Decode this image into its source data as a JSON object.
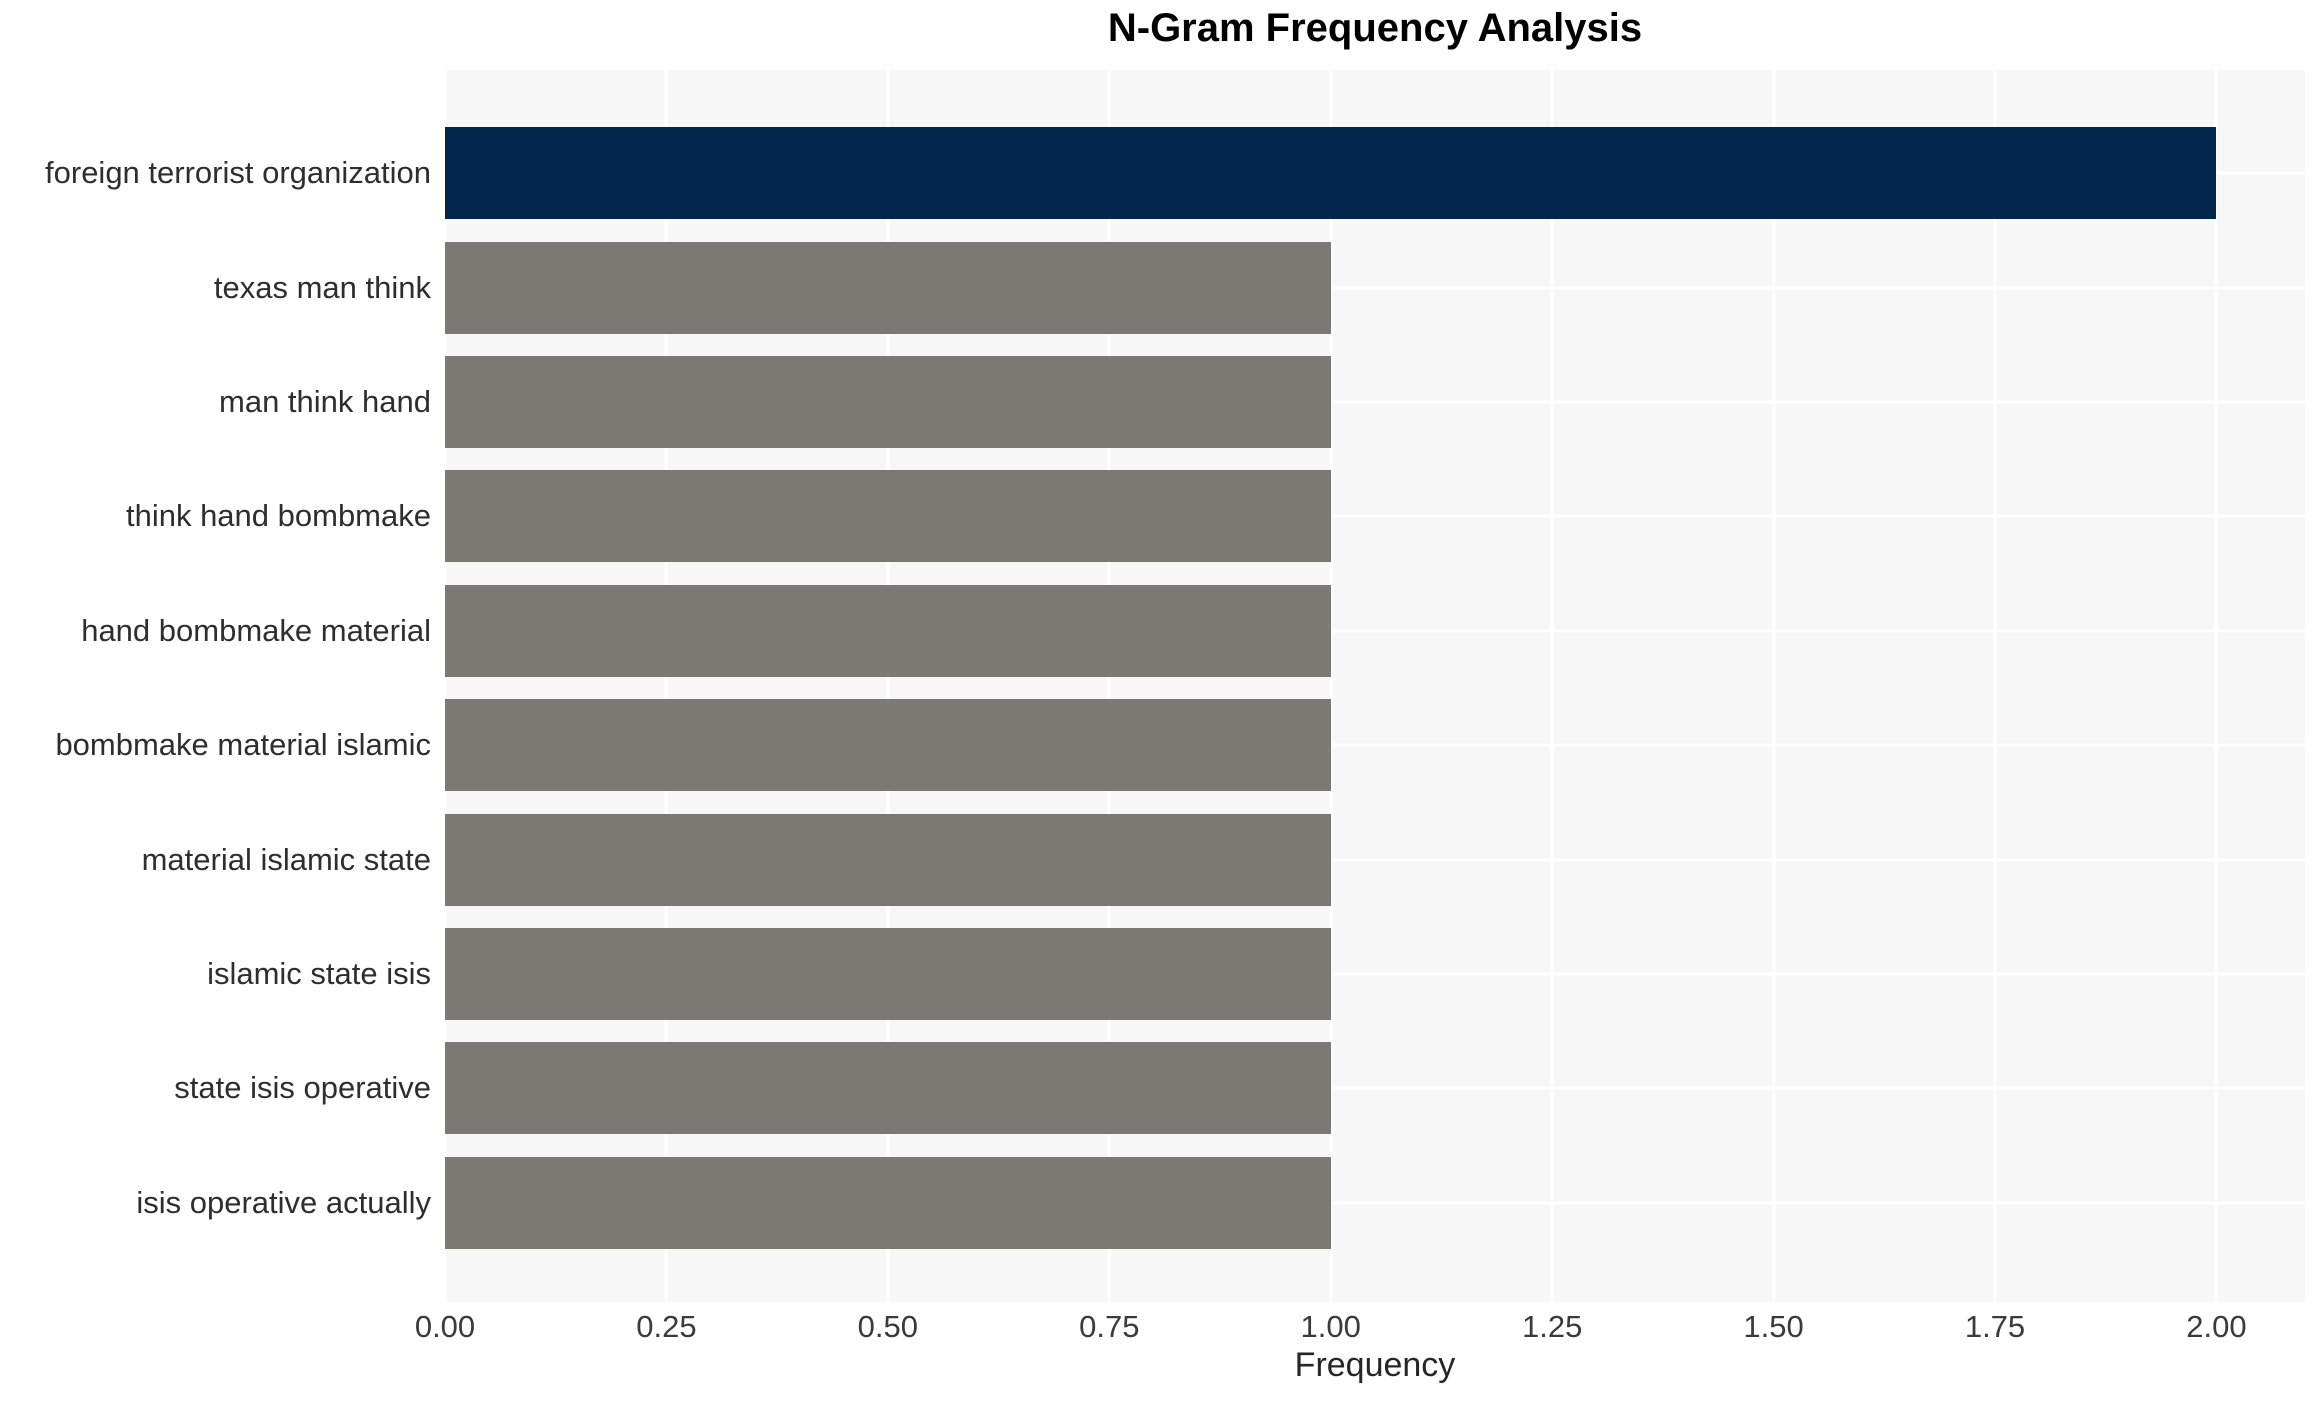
{
  "chart_data": {
    "type": "bar",
    "orientation": "horizontal",
    "title": "N-Gram Frequency Analysis",
    "xlabel": "Frequency",
    "ylabel": "",
    "categories": [
      "foreign terrorist organization",
      "texas man think",
      "man think hand",
      "think hand bombmake",
      "hand bombmake material",
      "bombmake material islamic",
      "material islamic state",
      "islamic state isis",
      "state isis operative",
      "isis operative actually"
    ],
    "values": [
      2,
      1,
      1,
      1,
      1,
      1,
      1,
      1,
      1,
      1
    ],
    "bar_colors": [
      "#02254c",
      "#7b7974",
      "#7b7974",
      "#7b7974",
      "#7b7974",
      "#7b7974",
      "#7b7974",
      "#7b7974",
      "#7b7974",
      "#7b7974"
    ],
    "xlim": [
      0,
      2.1
    ],
    "xticks": [
      0,
      0.25,
      0.5,
      0.75,
      1,
      1.25,
      1.5,
      1.75,
      2
    ],
    "xtick_labels": [
      "0.00",
      "0.25",
      "0.50",
      "0.75",
      "1.00",
      "1.25",
      "1.50",
      "1.75",
      "2.00"
    ],
    "grid": "white vertical and horizontal gridlines on light gray plot background",
    "legend": null,
    "colors": {
      "highlight_bar": "#02254c",
      "default_bar": "#7b7974",
      "plot_background": "#f7f7f7",
      "gridline": "#ffffff",
      "title_text": "#000000",
      "tick_text": "#3a3a3a",
      "category_text": "#2e2e2e",
      "page_background": "#ffffff"
    }
  }
}
